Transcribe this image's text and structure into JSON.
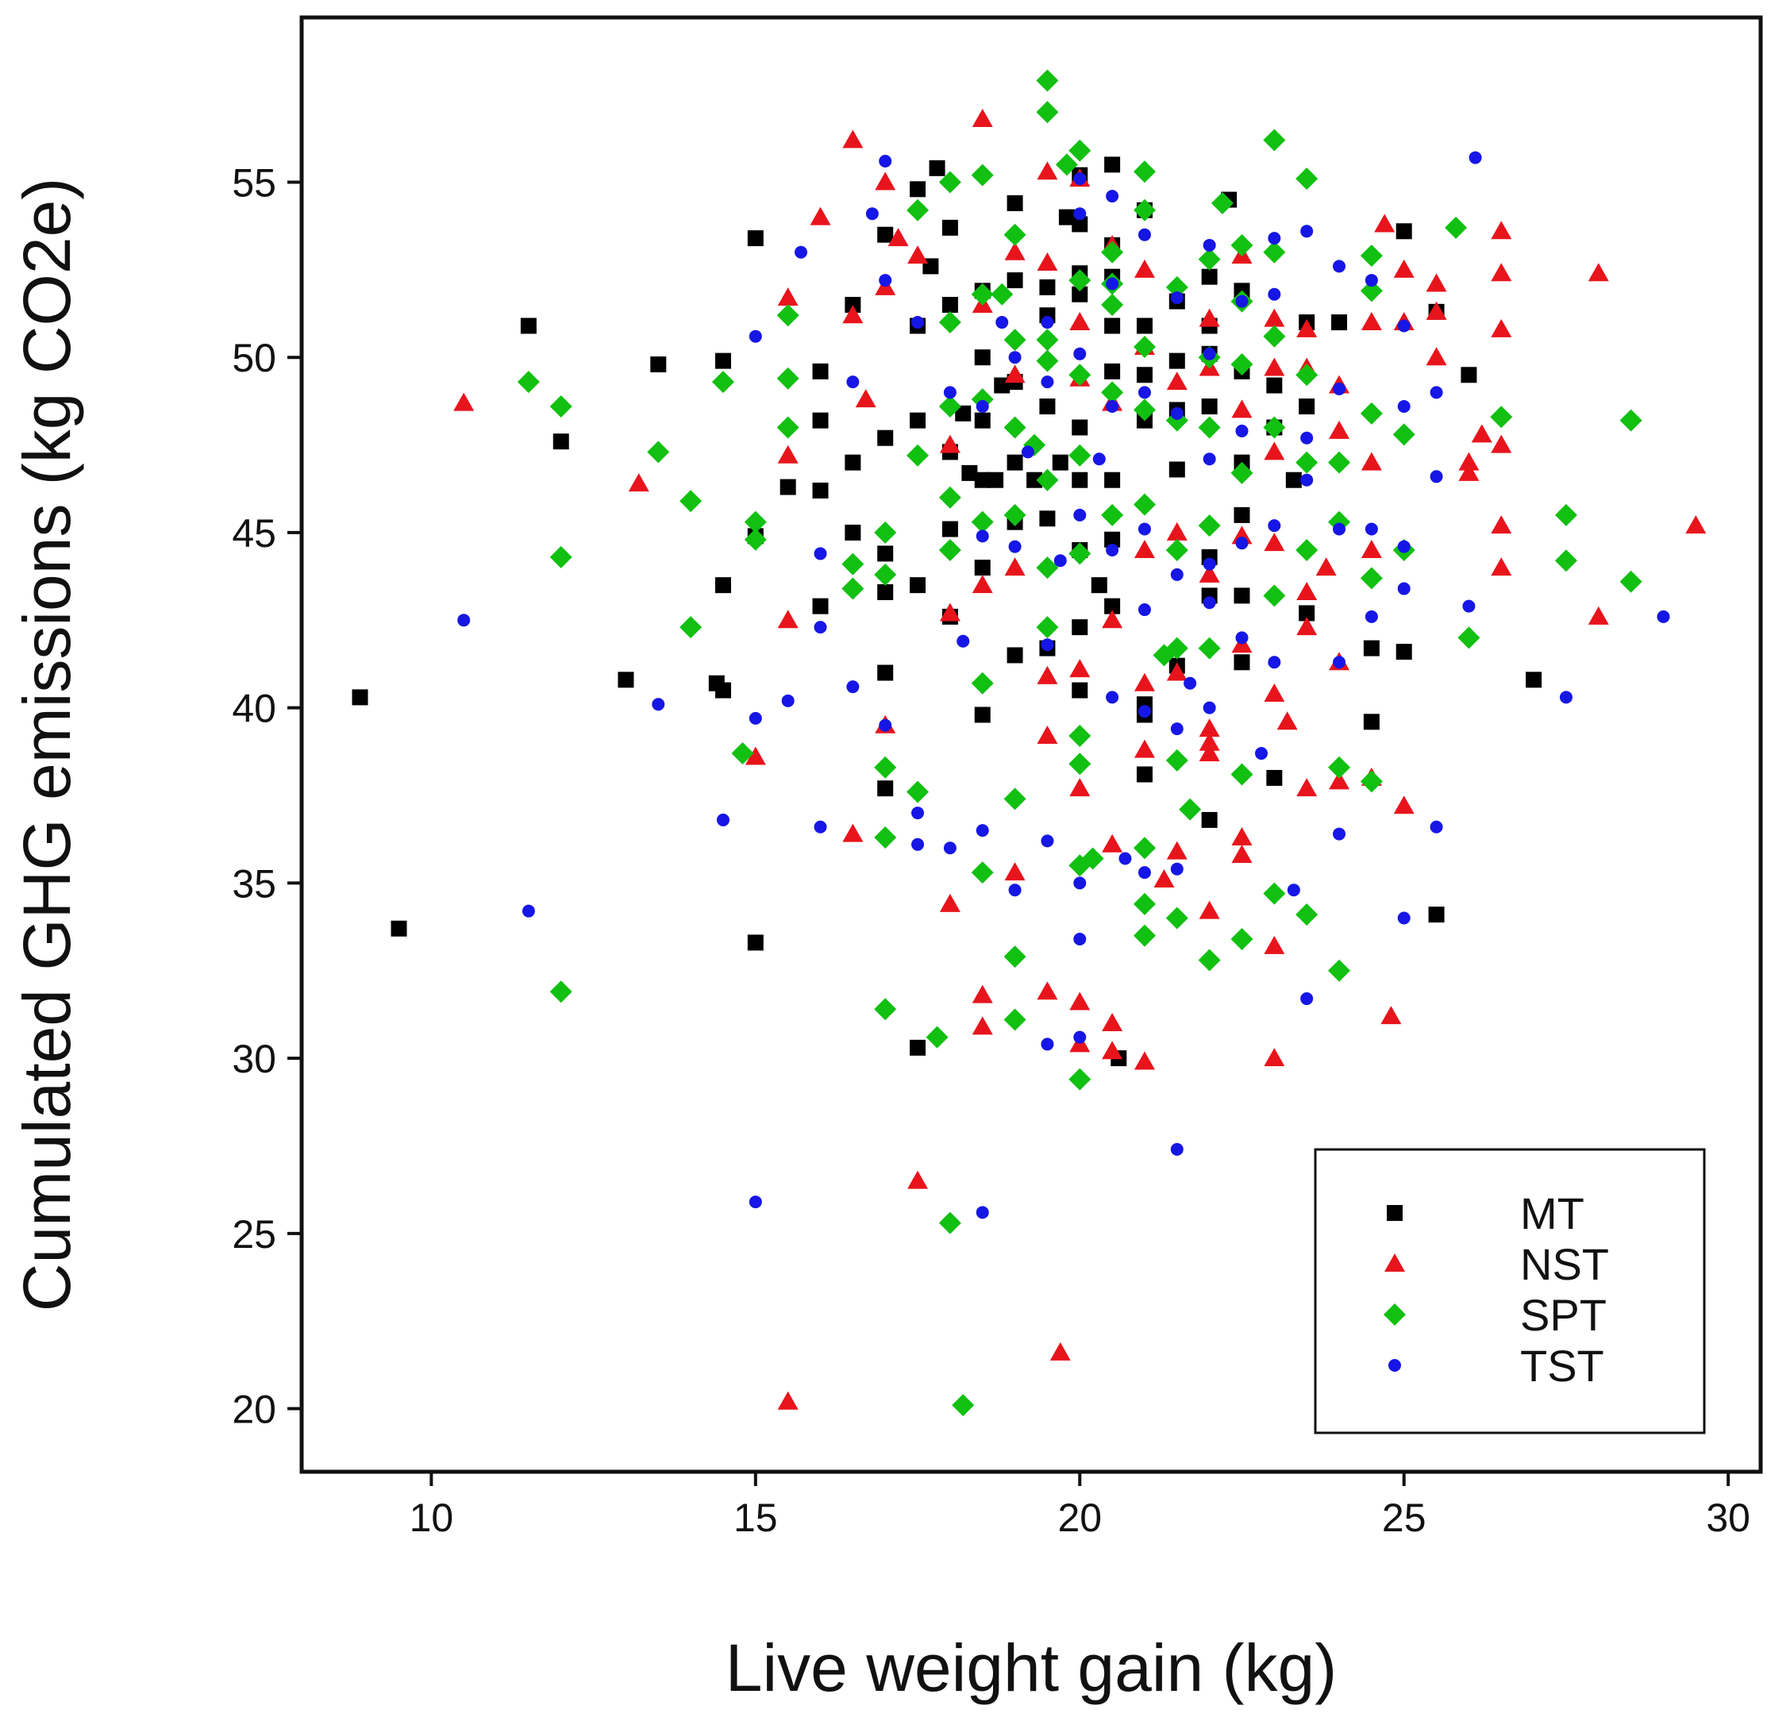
{
  "chart_data": {
    "type": "scatter",
    "title": "",
    "xlabel": "Live weight gain (kg)",
    "ylabel": "Cumulated GHG emissions (kg CO2e)",
    "xlim": [
      8,
      30.5
    ],
    "ylim": [
      18.2,
      59.7
    ],
    "xticks": [
      10,
      15,
      20,
      25,
      30
    ],
    "yticks": [
      20,
      25,
      30,
      35,
      40,
      45,
      50,
      55
    ],
    "grid": false,
    "legend_position": "bottom-right",
    "series": [
      {
        "name": "MT",
        "marker": "square",
        "color": "#000000",
        "x": [
          8.9,
          9.5,
          11.5,
          12.0,
          13.0,
          13.5,
          14.4,
          14.5,
          14.5,
          14.5,
          15.0,
          15.0,
          15.0,
          15.5,
          16.0,
          16.0,
          16.0,
          16.0,
          16.5,
          16.5,
          16.5,
          17.0,
          17.0,
          17.0,
          17.0,
          17.0,
          17.0,
          17.5,
          17.5,
          17.5,
          17.5,
          17.5,
          17.7,
          17.8,
          18.0,
          18.0,
          18.0,
          18.0,
          18.0,
          18.2,
          18.3,
          18.5,
          18.5,
          18.5,
          18.5,
          18.5,
          18.5,
          18.7,
          18.8,
          19.0,
          19.0,
          19.0,
          19.0,
          19.0,
          19.0,
          19.3,
          19.5,
          19.5,
          19.5,
          19.5,
          19.5,
          19.7,
          19.8,
          20.0,
          20.0,
          20.0,
          20.0,
          20.0,
          20.0,
          20.0,
          20.0,
          20.0,
          20.3,
          20.5,
          20.5,
          20.5,
          20.5,
          20.5,
          20.5,
          20.5,
          20.5,
          20.6,
          21.0,
          21.0,
          21.0,
          21.0,
          21.0,
          21.0,
          21.0,
          21.5,
          21.5,
          21.5,
          21.5,
          21.5,
          22.0,
          22.0,
          22.0,
          22.0,
          22.0,
          22.0,
          22.0,
          22.3,
          22.5,
          22.5,
          22.5,
          22.5,
          22.5,
          22.5,
          23.0,
          23.0,
          23.0,
          23.3,
          23.5,
          23.5,
          23.5,
          24.0,
          24.5,
          24.5,
          25.0,
          25.0,
          25.5,
          25.5,
          26.0,
          27.0
        ],
        "y": [
          40.3,
          33.7,
          50.9,
          47.6,
          40.8,
          49.8,
          40.7,
          40.5,
          43.5,
          49.9,
          53.4,
          44.9,
          33.3,
          46.3,
          49.6,
          48.2,
          46.2,
          42.9,
          51.5,
          47.0,
          45.0,
          53.5,
          47.7,
          44.4,
          43.3,
          41.0,
          37.7,
          54.8,
          48.2,
          43.5,
          30.3,
          50.9,
          52.6,
          55.4,
          53.7,
          51.5,
          47.3,
          45.1,
          42.6,
          48.4,
          46.7,
          51.9,
          50.0,
          48.2,
          46.5,
          44.0,
          39.8,
          46.5,
          49.2,
          54.4,
          52.2,
          49.3,
          47.0,
          45.3,
          41.5,
          46.5,
          52.0,
          51.2,
          48.6,
          45.4,
          41.7,
          47.0,
          54.0,
          55.2,
          53.8,
          52.4,
          51.8,
          48.0,
          46.5,
          44.5,
          42.3,
          40.5,
          43.5,
          55.5,
          53.2,
          52.3,
          50.9,
          49.6,
          46.5,
          44.8,
          42.9,
          30.0,
          54.2,
          50.9,
          49.5,
          48.2,
          40.1,
          39.8,
          38.1,
          51.6,
          49.9,
          48.5,
          46.8,
          41.2,
          52.3,
          50.9,
          50.1,
          48.6,
          44.3,
          43.2,
          36.8,
          54.5,
          51.9,
          49.6,
          47.0,
          45.5,
          43.2,
          41.3,
          49.2,
          48.0,
          38.0,
          46.5,
          51.0,
          48.6,
          42.7,
          51.0,
          41.7,
          39.6,
          53.6,
          41.6,
          51.3,
          34.1,
          49.5,
          40.8
        ]
      },
      {
        "name": "NST",
        "marker": "triangle",
        "color": "#e8141c",
        "x": [
          10.5,
          13.2,
          15.0,
          15.5,
          15.5,
          15.5,
          15.5,
          16.0,
          16.5,
          16.5,
          16.7,
          16.5,
          17.0,
          17.0,
          17.0,
          17.2,
          17.5,
          17.5,
          18.0,
          18.0,
          18.0,
          18.5,
          18.5,
          18.5,
          18.5,
          18.5,
          19.0,
          19.0,
          19.0,
          19.0,
          19.5,
          19.5,
          19.5,
          19.5,
          19.5,
          19.7,
          20.0,
          20.0,
          20.0,
          20.0,
          20.0,
          20.0,
          20.0,
          20.5,
          20.5,
          20.5,
          20.5,
          20.5,
          20.5,
          21.0,
          21.0,
          21.0,
          21.0,
          21.0,
          21.0,
          21.3,
          21.5,
          21.5,
          21.5,
          21.5,
          22.0,
          22.0,
          22.0,
          22.0,
          22.0,
          22.0,
          22.0,
          22.5,
          22.5,
          22.5,
          22.5,
          22.5,
          22.5,
          23.0,
          23.0,
          23.0,
          23.0,
          23.0,
          23.0,
          23.0,
          23.2,
          23.5,
          23.5,
          23.5,
          23.5,
          23.5,
          23.8,
          24.0,
          24.0,
          24.0,
          24.0,
          24.5,
          24.5,
          24.5,
          24.5,
          24.7,
          24.8,
          25.0,
          25.0,
          25.0,
          25.5,
          25.5,
          25.5,
          26.0,
          26.0,
          26.2,
          26.5,
          26.5,
          26.5,
          26.5,
          26.5,
          26.5,
          28.0,
          28.0,
          29.5
        ],
        "y": [
          48.7,
          46.4,
          38.6,
          51.7,
          47.2,
          42.5,
          20.2,
          54.0,
          56.2,
          51.2,
          48.8,
          36.4,
          55.0,
          52.0,
          39.5,
          53.4,
          52.9,
          26.5,
          47.5,
          42.7,
          34.4,
          56.8,
          51.5,
          43.5,
          31.8,
          30.9,
          53.0,
          44.0,
          35.3,
          49.5,
          55.3,
          52.7,
          40.9,
          39.2,
          31.9,
          21.6,
          55.1,
          51.0,
          49.4,
          41.1,
          37.7,
          30.4,
          31.6,
          53.2,
          48.7,
          42.5,
          36.1,
          31.0,
          30.2,
          52.5,
          50.3,
          44.5,
          40.7,
          38.8,
          29.9,
          35.1,
          49.3,
          45.0,
          41.0,
          35.9,
          51.1,
          49.7,
          43.8,
          39.4,
          38.7,
          34.2,
          39.0,
          52.9,
          48.5,
          44.9,
          41.8,
          36.3,
          35.8,
          51.1,
          49.7,
          47.3,
          44.7,
          40.4,
          33.2,
          30.0,
          39.6,
          50.8,
          49.7,
          43.3,
          42.3,
          37.7,
          44.0,
          49.2,
          47.9,
          41.3,
          37.9,
          51.0,
          47.0,
          44.5,
          38.0,
          53.8,
          31.2,
          52.5,
          51.0,
          37.2,
          51.3,
          52.1,
          50.0,
          47.0,
          46.7,
          47.8,
          53.6,
          52.4,
          50.8,
          47.5,
          45.2,
          44.0,
          52.4,
          42.6,
          45.2
        ]
      },
      {
        "name": "SPT",
        "marker": "diamond",
        "color": "#11c011",
        "x": [
          11.5,
          12.0,
          12.0,
          12.0,
          13.5,
          14.0,
          14.0,
          14.5,
          14.8,
          15.0,
          15.0,
          15.5,
          15.5,
          15.5,
          16.5,
          16.5,
          17.0,
          17.0,
          17.0,
          17.0,
          17.0,
          17.5,
          17.5,
          17.5,
          17.8,
          18.0,
          18.0,
          18.0,
          18.0,
          18.0,
          18.0,
          18.2,
          18.5,
          18.5,
          18.5,
          18.5,
          18.5,
          18.5,
          18.8,
          19.0,
          19.0,
          19.0,
          19.0,
          19.0,
          19.0,
          19.0,
          19.3,
          19.5,
          19.5,
          19.5,
          19.5,
          19.5,
          19.5,
          19.5,
          19.8,
          20.0,
          20.0,
          20.0,
          20.0,
          20.0,
          20.0,
          20.0,
          20.0,
          20.0,
          20.2,
          20.5,
          20.5,
          20.5,
          20.5,
          20.5,
          21.0,
          21.0,
          21.0,
          21.0,
          21.0,
          21.0,
          21.0,
          21.0,
          21.3,
          21.5,
          21.5,
          21.5,
          21.5,
          21.5,
          21.5,
          21.7,
          22.0,
          22.0,
          22.0,
          22.0,
          22.0,
          22.0,
          22.2,
          22.5,
          22.5,
          22.5,
          22.5,
          22.5,
          22.5,
          23.0,
          23.0,
          23.0,
          23.0,
          23.0,
          23.0,
          23.5,
          23.5,
          23.5,
          23.5,
          23.5,
          24.0,
          24.0,
          24.0,
          24.0,
          24.5,
          24.5,
          24.5,
          24.5,
          24.5,
          25.0,
          25.0,
          25.8,
          26.0,
          26.5,
          27.5,
          27.5,
          28.5,
          28.5
        ],
        "y": [
          49.3,
          48.6,
          44.3,
          31.9,
          47.3,
          45.9,
          42.3,
          49.3,
          38.7,
          45.3,
          44.8,
          51.2,
          49.4,
          48.0,
          44.1,
          43.4,
          45.0,
          43.8,
          38.3,
          36.3,
          31.4,
          54.2,
          47.2,
          37.6,
          30.6,
          55.0,
          51.0,
          48.6,
          46.0,
          44.5,
          25.3,
          20.1,
          55.2,
          51.8,
          48.8,
          45.3,
          40.7,
          35.3,
          51.8,
          53.5,
          50.5,
          48.0,
          45.5,
          37.4,
          32.9,
          31.1,
          47.5,
          57.9,
          57.0,
          50.5,
          49.9,
          46.5,
          44.0,
          42.3,
          55.5,
          55.9,
          52.2,
          49.5,
          47.2,
          44.4,
          39.2,
          38.4,
          35.5,
          29.4,
          35.7,
          53.0,
          52.1,
          51.5,
          49.0,
          45.5,
          55.3,
          54.2,
          50.3,
          48.5,
          45.8,
          36.0,
          34.4,
          33.5,
          41.5,
          52.0,
          48.2,
          44.5,
          41.7,
          38.5,
          34.0,
          37.1,
          52.8,
          50.0,
          48.0,
          45.2,
          41.7,
          32.8,
          54.4,
          53.2,
          51.6,
          49.8,
          46.7,
          38.1,
          33.4,
          56.2,
          53.0,
          50.6,
          48.0,
          43.2,
          34.7,
          55.1,
          49.5,
          47.0,
          44.5,
          34.1,
          47.0,
          45.3,
          38.3,
          32.5,
          52.9,
          51.9,
          48.4,
          43.7,
          37.9,
          47.8,
          44.5,
          53.7,
          42.0,
          48.3,
          45.5,
          44.2,
          48.2,
          43.6
        ]
      },
      {
        "name": "TST",
        "marker": "circle",
        "color": "#1616e6",
        "x": [
          10.5,
          11.5,
          13.5,
          14.5,
          15.0,
          15.0,
          15.0,
          15.5,
          15.7,
          16.0,
          16.0,
          16.0,
          16.5,
          16.5,
          16.8,
          17.0,
          17.0,
          17.0,
          17.5,
          17.5,
          17.5,
          18.0,
          18.0,
          18.2,
          18.5,
          18.5,
          18.5,
          18.5,
          18.8,
          19.0,
          19.0,
          19.0,
          19.2,
          19.5,
          19.5,
          19.5,
          19.5,
          19.5,
          19.7,
          20.0,
          20.0,
          20.0,
          20.0,
          20.0,
          20.0,
          20.0,
          20.3,
          20.5,
          20.5,
          20.5,
          20.5,
          20.5,
          20.7,
          21.0,
          21.0,
          21.0,
          21.0,
          21.0,
          21.0,
          21.5,
          21.5,
          21.5,
          21.5,
          21.5,
          21.5,
          21.7,
          22.0,
          22.0,
          22.0,
          22.0,
          22.0,
          22.0,
          22.5,
          22.5,
          22.5,
          22.5,
          22.8,
          23.0,
          23.0,
          23.0,
          23.0,
          23.3,
          23.5,
          23.5,
          23.5,
          23.5,
          24.0,
          24.0,
          24.0,
          24.0,
          24.0,
          24.5,
          24.5,
          24.5,
          25.0,
          25.0,
          25.0,
          25.0,
          25.0,
          25.5,
          25.5,
          25.5,
          26.0,
          26.1,
          27.5,
          29.0
        ],
        "y": [
          42.5,
          34.2,
          40.1,
          36.8,
          50.6,
          39.7,
          25.9,
          40.2,
          53.0,
          44.4,
          42.3,
          36.6,
          49.3,
          40.6,
          54.1,
          55.6,
          52.2,
          39.5,
          51.0,
          37.0,
          36.1,
          49.0,
          36.0,
          41.9,
          48.6,
          44.9,
          36.5,
          25.6,
          51.0,
          50.0,
          44.6,
          34.8,
          47.3,
          51.0,
          49.3,
          41.8,
          36.2,
          30.4,
          44.2,
          55.1,
          54.1,
          50.1,
          45.5,
          35.0,
          33.4,
          30.6,
          47.1,
          54.6,
          52.1,
          48.6,
          44.5,
          40.3,
          35.7,
          53.5,
          49.0,
          45.1,
          42.8,
          39.9,
          35.3,
          51.7,
          48.4,
          43.8,
          39.4,
          35.4,
          27.4,
          40.7,
          53.2,
          50.1,
          47.1,
          44.1,
          43.0,
          40.0,
          51.6,
          47.9,
          44.7,
          42.0,
          38.7,
          53.4,
          51.8,
          45.2,
          41.3,
          34.8,
          53.6,
          47.7,
          46.5,
          31.7,
          52.6,
          49.1,
          45.1,
          41.3,
          36.4,
          52.2,
          45.1,
          42.6,
          50.9,
          48.6,
          44.6,
          43.4,
          34.0,
          49.0,
          46.6,
          36.6,
          42.9,
          55.7,
          40.3,
          42.6
        ]
      }
    ]
  }
}
